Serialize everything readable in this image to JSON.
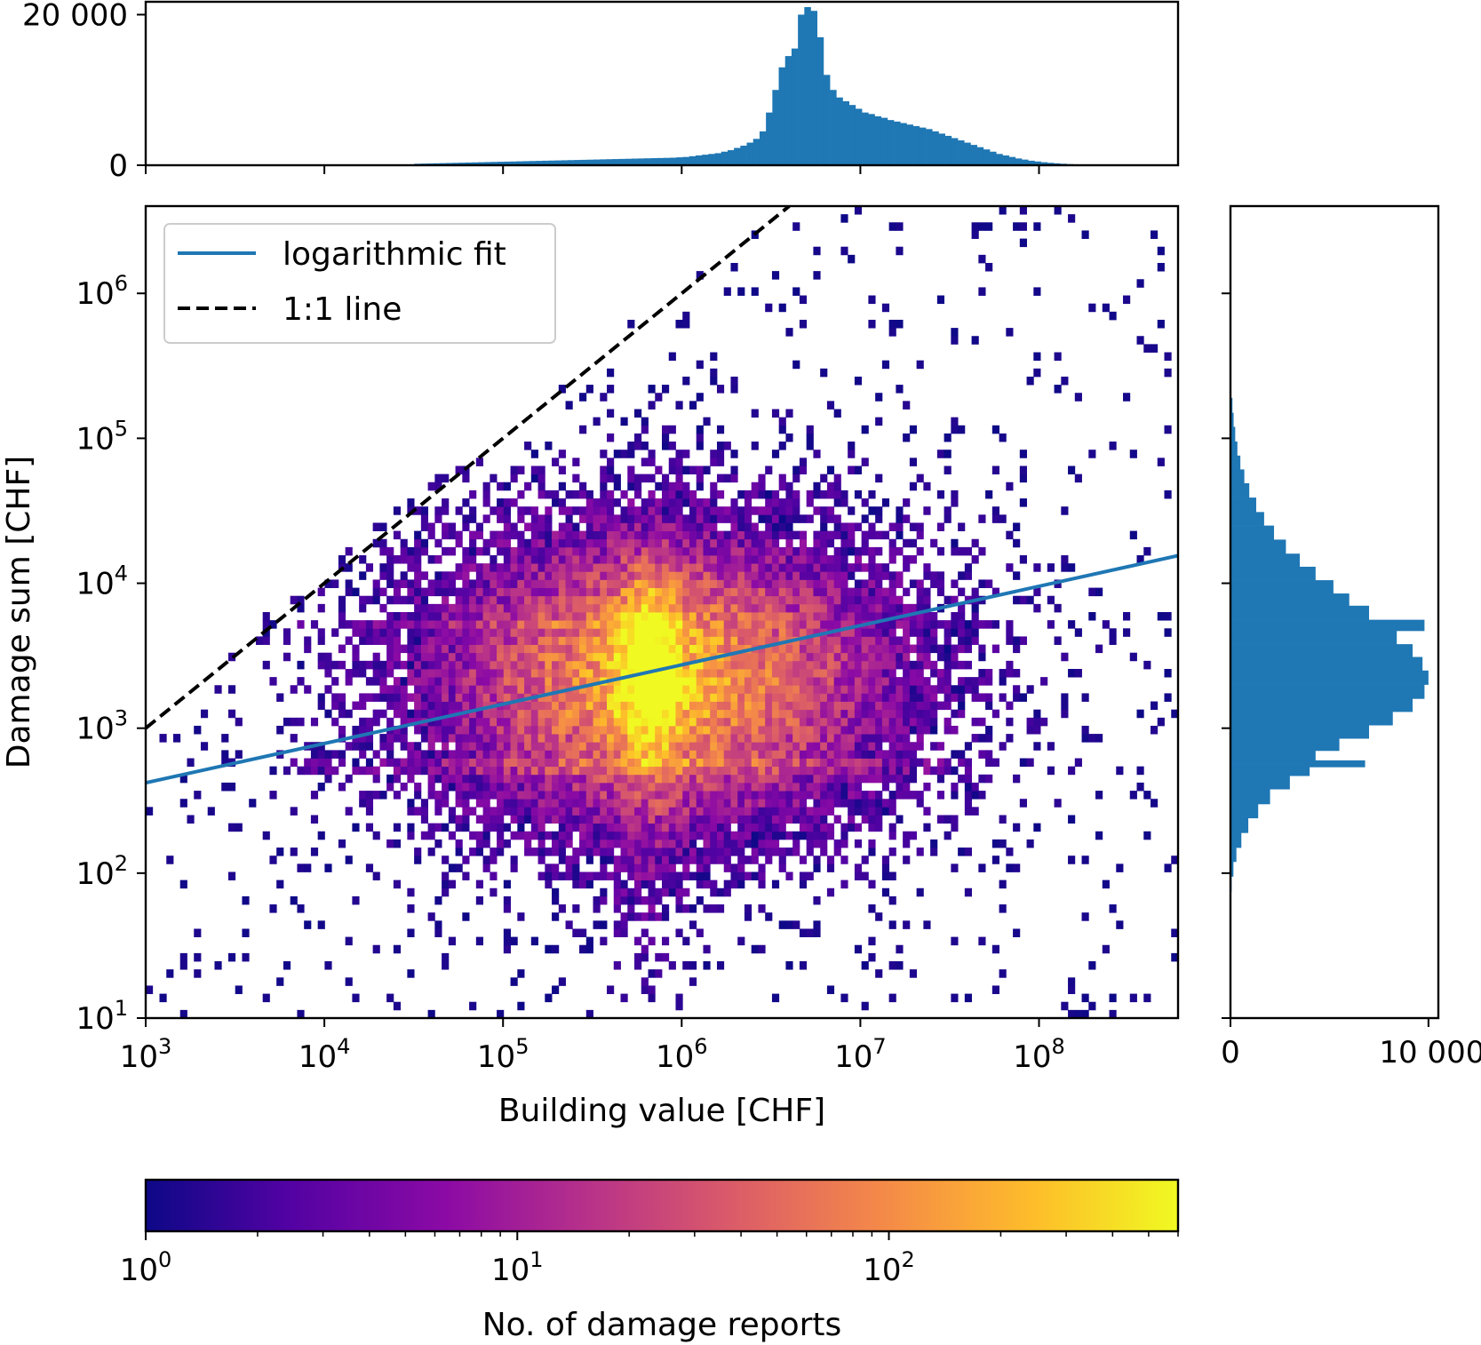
{
  "chart_data": [
    {
      "id": "main",
      "type": "heatmap",
      "subtype": "2d-histogram",
      "xlabel": "Building value [CHF]",
      "ylabel": "Damage sum [CHF]",
      "xscale": "log",
      "yscale": "log",
      "xlim": [
        1000,
        600000000
      ],
      "ylim": [
        10,
        4000000
      ],
      "x_ticks": [
        {
          "base": "10",
          "exp": "3"
        },
        {
          "base": "10",
          "exp": "4"
        },
        {
          "base": "10",
          "exp": "5"
        },
        {
          "base": "10",
          "exp": "6"
        },
        {
          "base": "10",
          "exp": "7"
        },
        {
          "base": "10",
          "exp": "8"
        }
      ],
      "y_ticks": [
        {
          "base": "10",
          "exp": "1"
        },
        {
          "base": "10",
          "exp": "2"
        },
        {
          "base": "10",
          "exp": "3"
        },
        {
          "base": "10",
          "exp": "4"
        },
        {
          "base": "10",
          "exp": "5"
        },
        {
          "base": "10",
          "exp": "6"
        }
      ],
      "density_peak": {
        "building_value": 650000,
        "damage_sum": 2800
      },
      "series": [
        {
          "name": "logarithmic fit",
          "kind": "line",
          "style": "solid",
          "color": "#1f77b4",
          "x": [
            1000,
            600000000
          ],
          "y": [
            420,
            15500
          ]
        },
        {
          "name": "1:1 line",
          "kind": "line",
          "style": "dashed",
          "color": "#000000",
          "x": [
            1000,
            4000000
          ],
          "y": [
            1000,
            4000000
          ]
        }
      ],
      "legend": {
        "position": "upper-left",
        "entries": [
          "logarithmic fit",
          "1:1 line"
        ]
      }
    },
    {
      "id": "top-marginal",
      "type": "bar",
      "subtype": "histogram",
      "color": "#1f77b4",
      "xscale": "log",
      "xlim": [
        1000,
        600000000
      ],
      "ylim": [
        0,
        21000
      ],
      "y_ticks": [
        "0",
        "20 000"
      ],
      "bin_log10_edges": [
        3.0,
        9.8
      ],
      "values": [
        0,
        0,
        0,
        0,
        0,
        0,
        0,
        0,
        0,
        0,
        0,
        0,
        0,
        0,
        0,
        0,
        0,
        0,
        0,
        0,
        0,
        0,
        0,
        0,
        0,
        0,
        0,
        0,
        0,
        0,
        0,
        0,
        0,
        0,
        0,
        0,
        0,
        0,
        0,
        0,
        0,
        0,
        200,
        220,
        240,
        260,
        280,
        300,
        320,
        340,
        360,
        380,
        400,
        420,
        440,
        460,
        480,
        500,
        520,
        540,
        560,
        580,
        600,
        620,
        640,
        660,
        680,
        700,
        720,
        740,
        760,
        780,
        800,
        820,
        840,
        860,
        880,
        900,
        920,
        940,
        960,
        980,
        1000,
        1050,
        1100,
        1200,
        1300,
        1400,
        1500,
        1600,
        1800,
        2000,
        2300,
        2600,
        3000,
        3500,
        4500,
        7000,
        10000,
        13000,
        14500,
        15500,
        20000,
        21000,
        20500,
        17000,
        12000,
        10000,
        9000,
        8500,
        8000,
        7500,
        7000,
        6800,
        6500,
        6300,
        6000,
        5800,
        5600,
        5400,
        5200,
        5000,
        4800,
        4500,
        4200,
        3900,
        3600,
        3300,
        3000,
        2700,
        2400,
        2100,
        1800,
        1500,
        1300,
        1100,
        900,
        750,
        600,
        500,
        400,
        320,
        260,
        200,
        150,
        110,
        80,
        60,
        40,
        30,
        20,
        10,
        0,
        0,
        0,
        0,
        0,
        0,
        0,
        0,
        0,
        0,
        0,
        0,
        0,
        0,
        0,
        0,
        0,
        0,
        0,
        0,
        0,
        0,
        0,
        0,
        0,
        0,
        0,
        0,
        0,
        0,
        0,
        0,
        0,
        0,
        0,
        0,
        0,
        0
      ]
    },
    {
      "id": "right-marginal",
      "type": "bar",
      "subtype": "histogram",
      "orientation": "horizontal",
      "color": "#1f77b4",
      "yscale": "log",
      "ylim": [
        10,
        4000000
      ],
      "xlim": [
        0,
        10500
      ],
      "x_ticks": [
        "0",
        "10 000"
      ],
      "bins": [
        {
          "y0": 60,
          "y1": 75,
          "v": 20
        },
        {
          "y0": 75,
          "y1": 95,
          "v": 60
        },
        {
          "y0": 95,
          "y1": 120,
          "v": 150
        },
        {
          "y0": 120,
          "y1": 150,
          "v": 300
        },
        {
          "y0": 150,
          "y1": 190,
          "v": 550
        },
        {
          "y0": 190,
          "y1": 240,
          "v": 900
        },
        {
          "y0": 240,
          "y1": 300,
          "v": 1400
        },
        {
          "y0": 300,
          "y1": 380,
          "v": 2000
        },
        {
          "y0": 380,
          "y1": 470,
          "v": 3000
        },
        {
          "y0": 470,
          "y1": 540,
          "v": 4000
        },
        {
          "y0": 540,
          "y1": 600,
          "v": 6800
        },
        {
          "y0": 600,
          "y1": 700,
          "v": 4300
        },
        {
          "y0": 700,
          "y1": 850,
          "v": 5500
        },
        {
          "y0": 850,
          "y1": 1050,
          "v": 7000
        },
        {
          "y0": 1050,
          "y1": 1300,
          "v": 8200
        },
        {
          "y0": 1300,
          "y1": 1600,
          "v": 9200
        },
        {
          "y0": 1600,
          "y1": 2000,
          "v": 9800
        },
        {
          "y0": 2000,
          "y1": 2500,
          "v": 10000
        },
        {
          "y0": 2500,
          "y1": 3100,
          "v": 9700
        },
        {
          "y0": 3100,
          "y1": 3800,
          "v": 9200
        },
        {
          "y0": 3800,
          "y1": 4700,
          "v": 8400
        },
        {
          "y0": 4700,
          "y1": 5600,
          "v": 9800
        },
        {
          "y0": 5600,
          "y1": 7000,
          "v": 7000
        },
        {
          "y0": 7000,
          "y1": 8500,
          "v": 6000
        },
        {
          "y0": 8500,
          "y1": 10500,
          "v": 5200
        },
        {
          "y0": 10500,
          "y1": 13000,
          "v": 4300
        },
        {
          "y0": 13000,
          "y1": 16000,
          "v": 3500
        },
        {
          "y0": 16000,
          "y1": 20000,
          "v": 2800
        },
        {
          "y0": 20000,
          "y1": 25000,
          "v": 2200
        },
        {
          "y0": 25000,
          "y1": 31000,
          "v": 1700
        },
        {
          "y0": 31000,
          "y1": 39000,
          "v": 1300
        },
        {
          "y0": 39000,
          "y1": 49000,
          "v": 950
        },
        {
          "y0": 49000,
          "y1": 61000,
          "v": 700
        },
        {
          "y0": 61000,
          "y1": 76000,
          "v": 500
        },
        {
          "y0": 76000,
          "y1": 95000,
          "v": 350
        },
        {
          "y0": 95000,
          "y1": 120000,
          "v": 240
        },
        {
          "y0": 120000,
          "y1": 150000,
          "v": 160
        },
        {
          "y0": 150000,
          "y1": 190000,
          "v": 100
        }
      ]
    },
    {
      "id": "colorbar",
      "type": "colorbar",
      "label": "No. of damage reports",
      "scale": "log",
      "range": [
        1,
        600
      ],
      "colormap": "plasma",
      "ticks": [
        {
          "base": "10",
          "exp": "0"
        },
        {
          "base": "10",
          "exp": "1"
        },
        {
          "base": "10",
          "exp": "2"
        }
      ]
    }
  ],
  "colors": {
    "hist": "#1f77b4",
    "fit": "#1f77b4",
    "one_to_one": "#000000",
    "plasma": [
      "#0d0887",
      "#5302a3",
      "#8b0aa5",
      "#b83289",
      "#db5c68",
      "#f48849",
      "#febd2a",
      "#f0f921"
    ]
  }
}
